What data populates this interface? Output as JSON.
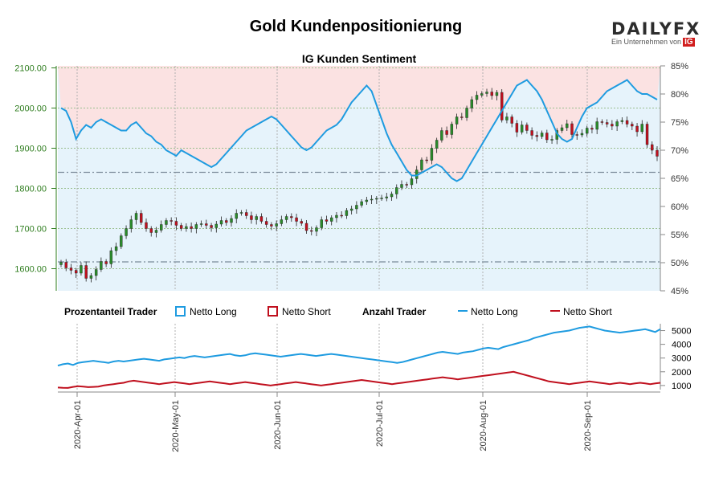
{
  "title": "Gold Kundenpositionierung",
  "subtitle": "IG Kunden Sentiment",
  "logo": {
    "main": "DAILY",
    "fx": "FX",
    "sub": "Ein Unternehmen von",
    "ig": "IG"
  },
  "colors": {
    "long": "#1e9be0",
    "short": "#c0101e",
    "bull": "#2a8c2a",
    "bear": "#c0101e",
    "long_fill": "#e6f3fb",
    "short_fill": "#fbe2e2"
  },
  "legend": {
    "group1": "Prozentanteil Trader",
    "long1": "Netto Long",
    "short1": "Netto Short",
    "group2": "Anzahl Trader",
    "long2": "Netto Long",
    "short2": "Netto Short"
  },
  "chart_data": [
    {
      "type": "candlestick+line",
      "title": "IG Kunden Sentiment",
      "x_ticks": [
        "2020-Apr-01",
        "2020-May-01",
        "2020-Jun-01",
        "2020-Jul-01",
        "2020-Aug-01",
        "2020-Sep-01"
      ],
      "y_left": {
        "ticks": [
          "1600.00",
          "1700.00",
          "1800.00",
          "1900.00",
          "2000.00",
          "2100.00"
        ],
        "range": [
          1545,
          2105
        ]
      },
      "y_right": {
        "ticks": [
          "45%",
          "50%",
          "55%",
          "60%",
          "65%",
          "70%",
          "75%",
          "80%",
          "85%"
        ],
        "range": [
          45,
          85
        ]
      },
      "reference_lines": [
        {
          "axis": "left",
          "value": 1617
        },
        {
          "axis": "left",
          "value": 1840
        }
      ],
      "price_close": [
        1616,
        1602,
        1596,
        1589,
        1608,
        1576,
        1583,
        1598,
        1618,
        1612,
        1645,
        1655,
        1682,
        1700,
        1722,
        1738,
        1715,
        1700,
        1690,
        1696,
        1710,
        1720,
        1718,
        1708,
        1700,
        1705,
        1700,
        1710,
        1712,
        1708,
        1702,
        1711,
        1720,
        1715,
        1725,
        1738,
        1740,
        1732,
        1722,
        1730,
        1718,
        1710,
        1706,
        1712,
        1722,
        1730,
        1727,
        1718,
        1713,
        1695,
        1693,
        1702,
        1722,
        1718,
        1727,
        1733,
        1732,
        1745,
        1749,
        1758,
        1767,
        1771,
        1773,
        1775,
        1776,
        1779,
        1786,
        1802,
        1810,
        1809,
        1824,
        1846,
        1871,
        1870,
        1900,
        1920,
        1944,
        1934,
        1960,
        1978,
        1976,
        2000,
        2021,
        2032,
        2036,
        2040,
        2031,
        2039,
        1970,
        1978,
        1962,
        1940,
        1958,
        1944,
        1932,
        1929,
        1938,
        1921,
        1922,
        1944,
        1951,
        1961,
        1934,
        1933,
        1937,
        1950,
        1947,
        1966,
        1964,
        1960,
        1955,
        1966,
        1969,
        1960,
        1955,
        1941,
        1960,
        1909,
        1895,
        1880
      ],
      "long_pct": [
        77.5,
        77.0,
        75.0,
        72.0,
        73.5,
        74.5,
        74.0,
        75.0,
        75.5,
        75.0,
        74.5,
        74.0,
        73.5,
        73.5,
        74.5,
        75.0,
        74.0,
        73.0,
        72.5,
        71.5,
        71.0,
        70.0,
        69.5,
        69.0,
        70.0,
        69.5,
        69.0,
        68.5,
        68.0,
        67.5,
        67.0,
        67.5,
        68.5,
        69.5,
        70.5,
        71.5,
        72.5,
        73.5,
        74.0,
        74.5,
        75.0,
        75.5,
        76.0,
        75.5,
        74.5,
        73.5,
        72.5,
        71.5,
        70.5,
        70.0,
        70.5,
        71.5,
        72.5,
        73.5,
        74.0,
        74.5,
        75.5,
        77.0,
        78.5,
        79.5,
        80.5,
        81.5,
        80.5,
        78.0,
        75.5,
        73.0,
        71.0,
        69.5,
        68.0,
        66.5,
        65.5,
        65.5,
        66.0,
        66.5,
        67.0,
        67.5,
        67.0,
        66.0,
        65.0,
        64.5,
        65.0,
        66.5,
        68.0,
        69.5,
        71.0,
        72.5,
        74.0,
        75.5,
        77.0,
        78.5,
        80.0,
        81.5,
        82.0,
        82.5,
        81.5,
        80.5,
        79.0,
        77.0,
        75.0,
        73.0,
        72.0,
        71.5,
        72.0,
        74.0,
        76.0,
        77.5,
        78.0,
        78.5,
        79.5,
        80.5,
        81.0,
        81.5,
        82.0,
        82.5,
        81.5,
        80.5,
        80.0,
        80.0,
        79.5,
        79.0
      ],
      "series": [
        {
          "name": "Netto Long",
          "axis": "right",
          "values_ref": "long_pct"
        },
        {
          "name": "Candles",
          "axis": "left",
          "values_ref": "price_close"
        }
      ]
    },
    {
      "type": "line",
      "title": "",
      "y_right": {
        "ticks": [
          "1000",
          "2000",
          "3000",
          "4000",
          "5000"
        ],
        "range": [
          700,
          5500
        ]
      },
      "net_long_count": [
        2450,
        2550,
        2600,
        2500,
        2650,
        2700,
        2750,
        2800,
        2750,
        2700,
        2650,
        2750,
        2800,
        2750,
        2800,
        2850,
        2900,
        2950,
        2900,
        2850,
        2800,
        2900,
        2950,
        3000,
        3050,
        3000,
        3100,
        3150,
        3100,
        3050,
        3100,
        3150,
        3200,
        3250,
        3300,
        3200,
        3150,
        3200,
        3300,
        3350,
        3300,
        3250,
        3200,
        3150,
        3100,
        3150,
        3200,
        3250,
        3300,
        3250,
        3200,
        3150,
        3200,
        3250,
        3300,
        3250,
        3200,
        3150,
        3100,
        3050,
        3000,
        2950,
        2900,
        2850,
        2800,
        2750,
        2700,
        2650,
        2700,
        2800,
        2900,
        3000,
        3100,
        3200,
        3300,
        3400,
        3450,
        3400,
        3350,
        3300,
        3400,
        3450,
        3500,
        3600,
        3700,
        3750,
        3700,
        3650,
        3800,
        3900,
        4000,
        4100,
        4200,
        4300,
        4450,
        4550,
        4650,
        4750,
        4850,
        4900,
        4950,
        5000,
        5100,
        5200,
        5250,
        5300,
        5200,
        5100,
        5000,
        4950,
        4900,
        4850,
        4900,
        4950,
        5000,
        5050,
        5100,
        5000,
        4900,
        5100
      ],
      "net_short_count": [
        850,
        830,
        820,
        900,
        950,
        920,
        880,
        900,
        920,
        1000,
        1050,
        1100,
        1150,
        1200,
        1300,
        1350,
        1300,
        1250,
        1200,
        1150,
        1100,
        1150,
        1200,
        1250,
        1200,
        1150,
        1100,
        1150,
        1200,
        1250,
        1300,
        1250,
        1200,
        1150,
        1100,
        1150,
        1200,
        1250,
        1200,
        1150,
        1100,
        1050,
        1000,
        1050,
        1100,
        1150,
        1200,
        1250,
        1200,
        1150,
        1100,
        1050,
        1000,
        1050,
        1100,
        1150,
        1200,
        1250,
        1300,
        1350,
        1400,
        1350,
        1300,
        1250,
        1200,
        1150,
        1100,
        1150,
        1200,
        1250,
        1300,
        1350,
        1400,
        1450,
        1500,
        1550,
        1600,
        1550,
        1500,
        1450,
        1500,
        1550,
        1600,
        1650,
        1700,
        1750,
        1800,
        1850,
        1900,
        1950,
        2000,
        1900,
        1800,
        1700,
        1600,
        1500,
        1400,
        1300,
        1250,
        1200,
        1150,
        1100,
        1150,
        1200,
        1250,
        1300,
        1250,
        1200,
        1150,
        1100,
        1150,
        1200,
        1150,
        1100,
        1150,
        1200,
        1150,
        1100,
        1150,
        1200
      ],
      "series": [
        {
          "name": "Netto Long",
          "values_ref": "net_long_count"
        },
        {
          "name": "Netto Short",
          "values_ref": "net_short_count"
        }
      ]
    }
  ]
}
